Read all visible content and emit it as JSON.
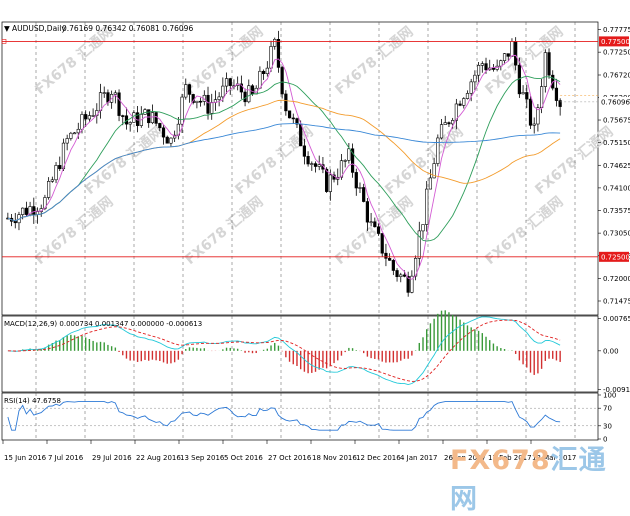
{
  "main_panel": {
    "symbol": "AUDUSD,Daily",
    "ohlc": "0.76169 0.76342 0.76081 0.76096",
    "price_ticks": [
      "0.77775",
      "0.77250",
      "0.76720",
      "0.76200",
      "0.75675",
      "0.75150",
      "0.74625",
      "0.74100",
      "0.73575",
      "0.73050",
      "0.72525",
      "0.72000",
      "0.71475"
    ],
    "level_high": "0.77500",
    "level_low": "0.72500",
    "last_price": "0.76096",
    "ma_marker": "",
    "price_range": [
      0.7115,
      0.7795
    ]
  },
  "macd_panel": {
    "label": "MACD(12,26,9) 0.000734 0.001347 0.000000 -0.000613",
    "ticks": [
      "0.00765",
      "0.00",
      "-0.00915"
    ],
    "range": [
      -0.0095,
      0.008
    ]
  },
  "rsi_panel": {
    "label": "RSI(14) 47.6758",
    "ticks": [
      "100",
      "70",
      "30",
      "0"
    ]
  },
  "x_axis": {
    "labels": [
      "15 Jun 2016",
      "7 Jul 2016",
      "29 Jul 2016",
      "22 Aug 2016",
      "13 Sep 2016",
      "5 Oct 2016",
      "27 Oct 2016",
      "18 Nov 2016",
      "12 Dec 2016",
      "4 Jan 2017",
      "26 Jan 2017",
      "17 Feb 2017",
      "13 Mar 2017"
    ]
  },
  "watermark": {
    "text": "FX678 汇通网"
  },
  "brand": {
    "part_a": "FX678",
    "part_b": "汇通网"
  },
  "colors": {
    "bull": "#000000",
    "bear": "#000000",
    "level": "#e41b1b",
    "ma_fast": "#d35bd3",
    "ma_mid": "#2e9e5b",
    "ma_slow": "#f39b2b",
    "ma_long": "#3a88d6",
    "macd_signal": "#e02020",
    "macd_line": "#24c9d9",
    "hist_pos": "#3a9a3a",
    "hist_neg": "#d23030",
    "rsi": "#2d79d6"
  }
}
